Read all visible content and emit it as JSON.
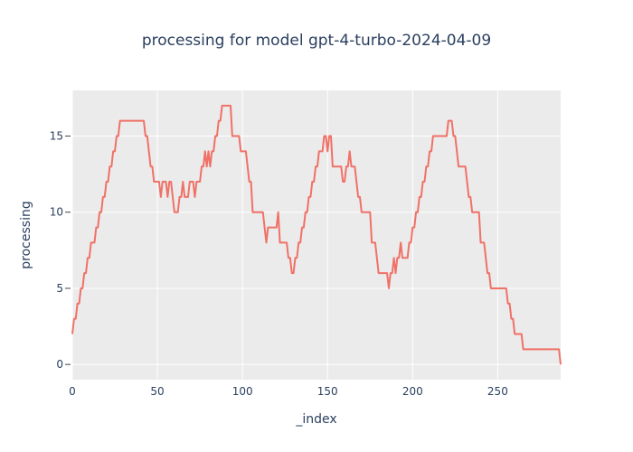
{
  "chart_data": {
    "type": "line",
    "title": "processing for model gpt-4-turbo-2024-04-09",
    "xlabel": "_index",
    "ylabel": "processing",
    "xlim": [
      0,
      287
    ],
    "ylim": [
      -1,
      18
    ],
    "xticks": [
      0,
      50,
      100,
      150,
      200,
      250
    ],
    "yticks": [
      0,
      5,
      10,
      15
    ],
    "grid": true,
    "line_color": "#f07167",
    "plot_bg": "#ebebeb",
    "series": [
      {
        "points": [
          [
            0,
            2
          ],
          [
            1,
            3
          ],
          [
            2,
            3
          ],
          [
            3,
            4
          ],
          [
            4,
            4
          ],
          [
            5,
            5
          ],
          [
            6,
            5
          ],
          [
            7,
            6
          ],
          [
            8,
            6
          ],
          [
            9,
            7
          ],
          [
            10,
            7
          ],
          [
            11,
            8
          ],
          [
            12,
            8
          ],
          [
            13,
            8
          ],
          [
            14,
            9
          ],
          [
            15,
            9
          ],
          [
            16,
            10
          ],
          [
            17,
            10
          ],
          [
            18,
            11
          ],
          [
            19,
            11
          ],
          [
            20,
            12
          ],
          [
            21,
            12
          ],
          [
            22,
            13
          ],
          [
            23,
            13
          ],
          [
            24,
            14
          ],
          [
            25,
            14
          ],
          [
            26,
            15
          ],
          [
            27,
            15
          ],
          [
            28,
            16
          ],
          [
            29,
            16
          ],
          [
            30,
            16
          ],
          [
            31,
            16
          ],
          [
            32,
            16
          ],
          [
            33,
            16
          ],
          [
            34,
            16
          ],
          [
            35,
            16
          ],
          [
            36,
            16
          ],
          [
            37,
            16
          ],
          [
            38,
            16
          ],
          [
            39,
            16
          ],
          [
            40,
            16
          ],
          [
            41,
            16
          ],
          [
            42,
            16
          ],
          [
            43,
            15
          ],
          [
            44,
            15
          ],
          [
            45,
            14
          ],
          [
            46,
            13
          ],
          [
            47,
            13
          ],
          [
            48,
            12
          ],
          [
            49,
            12
          ],
          [
            50,
            12
          ],
          [
            51,
            12
          ],
          [
            52,
            11
          ],
          [
            53,
            12
          ],
          [
            54,
            12
          ],
          [
            55,
            12
          ],
          [
            56,
            11
          ],
          [
            57,
            12
          ],
          [
            58,
            12
          ],
          [
            59,
            11
          ],
          [
            60,
            10
          ],
          [
            61,
            10
          ],
          [
            62,
            10
          ],
          [
            63,
            11
          ],
          [
            64,
            11
          ],
          [
            65,
            12
          ],
          [
            66,
            11
          ],
          [
            67,
            11
          ],
          [
            68,
            11
          ],
          [
            69,
            12
          ],
          [
            70,
            12
          ],
          [
            71,
            12
          ],
          [
            72,
            11
          ],
          [
            73,
            12
          ],
          [
            74,
            12
          ],
          [
            75,
            12
          ],
          [
            76,
            13
          ],
          [
            77,
            13
          ],
          [
            78,
            14
          ],
          [
            79,
            13
          ],
          [
            80,
            14
          ],
          [
            81,
            13
          ],
          [
            82,
            14
          ],
          [
            83,
            14
          ],
          [
            84,
            15
          ],
          [
            85,
            15
          ],
          [
            86,
            16
          ],
          [
            87,
            16
          ],
          [
            88,
            17
          ],
          [
            89,
            17
          ],
          [
            90,
            17
          ],
          [
            91,
            17
          ],
          [
            92,
            17
          ],
          [
            93,
            17
          ],
          [
            94,
            15
          ],
          [
            95,
            15
          ],
          [
            96,
            15
          ],
          [
            97,
            15
          ],
          [
            98,
            15
          ],
          [
            99,
            14
          ],
          [
            100,
            14
          ],
          [
            101,
            14
          ],
          [
            102,
            14
          ],
          [
            103,
            13
          ],
          [
            104,
            12
          ],
          [
            105,
            12
          ],
          [
            106,
            10
          ],
          [
            107,
            10
          ],
          [
            108,
            10
          ],
          [
            109,
            10
          ],
          [
            110,
            10
          ],
          [
            111,
            10
          ],
          [
            112,
            10
          ],
          [
            113,
            9
          ],
          [
            114,
            8
          ],
          [
            115,
            9
          ],
          [
            116,
            9
          ],
          [
            117,
            9
          ],
          [
            118,
            9
          ],
          [
            119,
            9
          ],
          [
            120,
            9
          ],
          [
            121,
            10
          ],
          [
            122,
            8
          ],
          [
            123,
            8
          ],
          [
            124,
            8
          ],
          [
            125,
            8
          ],
          [
            126,
            8
          ],
          [
            127,
            7
          ],
          [
            128,
            7
          ],
          [
            129,
            6
          ],
          [
            130,
            6
          ],
          [
            131,
            7
          ],
          [
            132,
            7
          ],
          [
            133,
            8
          ],
          [
            134,
            8
          ],
          [
            135,
            9
          ],
          [
            136,
            9
          ],
          [
            137,
            10
          ],
          [
            138,
            10
          ],
          [
            139,
            11
          ],
          [
            140,
            11
          ],
          [
            141,
            12
          ],
          [
            142,
            12
          ],
          [
            143,
            13
          ],
          [
            144,
            13
          ],
          [
            145,
            14
          ],
          [
            146,
            14
          ],
          [
            147,
            14
          ],
          [
            148,
            15
          ],
          [
            149,
            15
          ],
          [
            150,
            14
          ],
          [
            151,
            15
          ],
          [
            152,
            15
          ],
          [
            153,
            13
          ],
          [
            154,
            13
          ],
          [
            155,
            13
          ],
          [
            156,
            13
          ],
          [
            157,
            13
          ],
          [
            158,
            13
          ],
          [
            159,
            12
          ],
          [
            160,
            12
          ],
          [
            161,
            13
          ],
          [
            162,
            13
          ],
          [
            163,
            14
          ],
          [
            164,
            13
          ],
          [
            165,
            13
          ],
          [
            166,
            13
          ],
          [
            167,
            12
          ],
          [
            168,
            11
          ],
          [
            169,
            11
          ],
          [
            170,
            10
          ],
          [
            171,
            10
          ],
          [
            172,
            10
          ],
          [
            173,
            10
          ],
          [
            174,
            10
          ],
          [
            175,
            10
          ],
          [
            176,
            8
          ],
          [
            177,
            8
          ],
          [
            178,
            8
          ],
          [
            179,
            7
          ],
          [
            180,
            6
          ],
          [
            181,
            6
          ],
          [
            182,
            6
          ],
          [
            183,
            6
          ],
          [
            184,
            6
          ],
          [
            185,
            6
          ],
          [
            186,
            5
          ],
          [
            187,
            6
          ],
          [
            188,
            6
          ],
          [
            189,
            7
          ],
          [
            190,
            6
          ],
          [
            191,
            7
          ],
          [
            192,
            7
          ],
          [
            193,
            8
          ],
          [
            194,
            7
          ],
          [
            195,
            7
          ],
          [
            196,
            7
          ],
          [
            197,
            7
          ],
          [
            198,
            8
          ],
          [
            199,
            8
          ],
          [
            200,
            9
          ],
          [
            201,
            9
          ],
          [
            202,
            10
          ],
          [
            203,
            10
          ],
          [
            204,
            11
          ],
          [
            205,
            11
          ],
          [
            206,
            12
          ],
          [
            207,
            12
          ],
          [
            208,
            13
          ],
          [
            209,
            13
          ],
          [
            210,
            14
          ],
          [
            211,
            14
          ],
          [
            212,
            15
          ],
          [
            213,
            15
          ],
          [
            214,
            15
          ],
          [
            215,
            15
          ],
          [
            216,
            15
          ],
          [
            217,
            15
          ],
          [
            218,
            15
          ],
          [
            219,
            15
          ],
          [
            220,
            15
          ],
          [
            221,
            16
          ],
          [
            222,
            16
          ],
          [
            223,
            16
          ],
          [
            224,
            15
          ],
          [
            225,
            15
          ],
          [
            226,
            14
          ],
          [
            227,
            13
          ],
          [
            228,
            13
          ],
          [
            229,
            13
          ],
          [
            230,
            13
          ],
          [
            231,
            13
          ],
          [
            232,
            12
          ],
          [
            233,
            11
          ],
          [
            234,
            11
          ],
          [
            235,
            10
          ],
          [
            236,
            10
          ],
          [
            237,
            10
          ],
          [
            238,
            10
          ],
          [
            239,
            10
          ],
          [
            240,
            8
          ],
          [
            241,
            8
          ],
          [
            242,
            8
          ],
          [
            243,
            7
          ],
          [
            244,
            6
          ],
          [
            245,
            6
          ],
          [
            246,
            5
          ],
          [
            247,
            5
          ],
          [
            248,
            5
          ],
          [
            249,
            5
          ],
          [
            250,
            5
          ],
          [
            251,
            5
          ],
          [
            252,
            5
          ],
          [
            253,
            5
          ],
          [
            254,
            5
          ],
          [
            255,
            5
          ],
          [
            256,
            4
          ],
          [
            257,
            4
          ],
          [
            258,
            3
          ],
          [
            259,
            3
          ],
          [
            260,
            2
          ],
          [
            261,
            2
          ],
          [
            262,
            2
          ],
          [
            263,
            2
          ],
          [
            264,
            2
          ],
          [
            265,
            1
          ],
          [
            266,
            1
          ],
          [
            267,
            1
          ],
          [
            268,
            1
          ],
          [
            269,
            1
          ],
          [
            270,
            1
          ],
          [
            271,
            1
          ],
          [
            272,
            1
          ],
          [
            273,
            1
          ],
          [
            274,
            1
          ],
          [
            275,
            1
          ],
          [
            276,
            1
          ],
          [
            277,
            1
          ],
          [
            278,
            1
          ],
          [
            279,
            1
          ],
          [
            280,
            1
          ],
          [
            281,
            1
          ],
          [
            282,
            1
          ],
          [
            283,
            1
          ],
          [
            284,
            1
          ],
          [
            285,
            1
          ],
          [
            286,
            1
          ],
          [
            287,
            0
          ]
        ]
      }
    ]
  }
}
